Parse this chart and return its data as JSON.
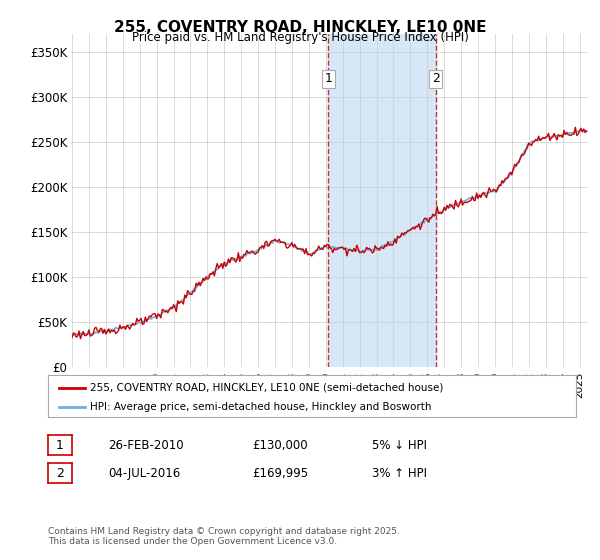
{
  "title": "255, COVENTRY ROAD, HINCKLEY, LE10 0NE",
  "subtitle": "Price paid vs. HM Land Registry's House Price Index (HPI)",
  "ylabel_ticks": [
    "£0",
    "£50K",
    "£100K",
    "£150K",
    "£200K",
    "£250K",
    "£300K",
    "£350K"
  ],
  "ytick_values": [
    0,
    50000,
    100000,
    150000,
    200000,
    250000,
    300000,
    350000
  ],
  "ylim": [
    0,
    370000
  ],
  "xlim_start": 1995.0,
  "xlim_end": 2025.5,
  "hpi_color": "#6ab0e0",
  "price_color": "#cc0000",
  "shade_color": "#d6e8f7",
  "marker1_x": 2010.15,
  "marker2_x": 2016.5,
  "marker1_price": 130000,
  "marker2_price": 169995,
  "legend_label1": "255, COVENTRY ROAD, HINCKLEY, LE10 0NE (semi-detached house)",
  "legend_label2": "HPI: Average price, semi-detached house, Hinckley and Bosworth",
  "table_rows": [
    [
      "1",
      "26-FEB-2010",
      "£130,000",
      "5% ↓ HPI"
    ],
    [
      "2",
      "04-JUL-2016",
      "£169,995",
      "3% ↑ HPI"
    ]
  ],
  "footer": "Contains HM Land Registry data © Crown copyright and database right 2025.\nThis data is licensed under the Open Government Licence v3.0.",
  "background_color": "#ffffff"
}
